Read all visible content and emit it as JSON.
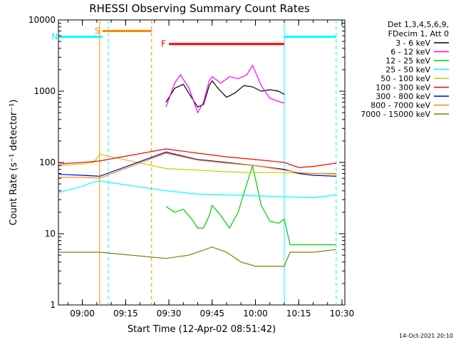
{
  "chart_data": {
    "type": "line",
    "title": "RHESSI Observing Summary Count Rates",
    "xlabel": "Start Time (12-Apr-02 08:51:42)",
    "ylabel": "Count Rate (s⁻¹ detector⁻¹)",
    "y_scale": "log",
    "ylim": [
      1,
      10000
    ],
    "xlim": [
      "08:51:42",
      "10:31:00"
    ],
    "x_ticks": [
      "09:00",
      "09:15",
      "09:30",
      "09:45",
      "10:00",
      "10:15",
      "10:30"
    ],
    "y_ticks": [
      "1",
      "10",
      "100",
      "1000",
      "10000"
    ],
    "legend_header": [
      "Det 1,3,4,5,6,9,",
      "FDecim 1, Att 0"
    ],
    "legend_position": "outside-right",
    "series": [
      {
        "name": "3 - 6 keV",
        "color": "#000000",
        "x": [
          "09:29",
          "09:32",
          "09:35",
          "09:38",
          "09:40",
          "09:42",
          "09:44",
          "09:45",
          "09:47",
          "09:50",
          "09:53",
          "09:56",
          "09:59",
          "10:02",
          "10:05",
          "10:08",
          "10:10"
        ],
        "values": [
          700,
          1100,
          1250,
          800,
          600,
          650,
          1200,
          1400,
          1100,
          820,
          950,
          1200,
          1150,
          1000,
          1050,
          1000,
          900
        ]
      },
      {
        "name": "6 - 12 keV",
        "color": "#ff00ff",
        "x": [
          "09:29",
          "09:32",
          "09:34",
          "09:37",
          "09:40",
          "09:42",
          "09:44",
          "09:45",
          "09:48",
          "09:51",
          "09:54",
          "09:57",
          "09:59",
          "10:02",
          "10:05",
          "10:08",
          "10:10"
        ],
        "values": [
          600,
          1300,
          1700,
          1100,
          500,
          700,
          1400,
          1600,
          1300,
          1600,
          1500,
          1700,
          2300,
          1200,
          800,
          720,
          680
        ]
      },
      {
        "name": "12 - 25 keV",
        "color": "#00cc00",
        "x": [
          "09:29",
          "09:32",
          "09:35",
          "09:38",
          "09:40",
          "09:42",
          "09:44",
          "09:45",
          "09:48",
          "09:51",
          "09:54",
          "09:57",
          "09:59",
          "10:02",
          "10:05",
          "10:08",
          "10:10",
          "10:12",
          "10:20",
          "10:28"
        ],
        "values": [
          24,
          20,
          22,
          16,
          12,
          12,
          18,
          25,
          18,
          12,
          20,
          50,
          90,
          25,
          15,
          14,
          16,
          7,
          7,
          7
        ]
      },
      {
        "name": "25 - 50 keV",
        "color": "#00ffff",
        "x": [
          "08:52",
          "08:56",
          "09:00",
          "09:03",
          "09:06",
          "09:29",
          "09:40",
          "09:50",
          "10:00",
          "10:10",
          "10:20",
          "10:28"
        ],
        "values": [
          38,
          42,
          46,
          52,
          55,
          40,
          36,
          35,
          34,
          33,
          32,
          35
        ]
      },
      {
        "name": "50 - 100 keV",
        "color": "#cccc00",
        "x": [
          "08:52",
          "09:00",
          "09:04",
          "09:06",
          "09:29",
          "09:40",
          "09:50",
          "10:00",
          "10:10",
          "10:20",
          "10:28"
        ],
        "values": [
          90,
          95,
          100,
          130,
          82,
          78,
          74,
          72,
          72,
          70,
          68
        ]
      },
      {
        "name": "100 - 300 keV",
        "color": "#ff0000",
        "x": [
          "08:52",
          "09:00",
          "09:06",
          "09:29",
          "09:40",
          "09:50",
          "10:00",
          "10:10",
          "10:15",
          "10:20",
          "10:28"
        ],
        "values": [
          95,
          100,
          105,
          155,
          135,
          120,
          110,
          100,
          85,
          88,
          98
        ]
      },
      {
        "name": "300 - 800 keV",
        "color": "#0000cc",
        "x": [
          "08:52",
          "09:00",
          "09:06",
          "09:29",
          "09:40",
          "09:50",
          "10:00",
          "10:10",
          "10:15",
          "10:20",
          "10:28"
        ],
        "values": [
          68,
          66,
          64,
          140,
          110,
          100,
          90,
          80,
          70,
          66,
          64
        ]
      },
      {
        "name": "800 - 7000 keV",
        "color": "#ff8800",
        "x": [
          "08:52",
          "09:00",
          "09:06",
          "09:29",
          "09:40",
          "09:50",
          "10:00",
          "10:10",
          "10:15",
          "10:20",
          "10:28"
        ],
        "values": [
          62,
          62,
          60,
          135,
          108,
          98,
          90,
          78,
          72,
          70,
          70
        ]
      },
      {
        "name": "7000 - 15000 keV",
        "color": "#808000",
        "x": [
          "08:52",
          "09:00",
          "09:06",
          "09:29",
          "09:37",
          "09:45",
          "09:50",
          "09:55",
          "10:00",
          "10:10",
          "10:12",
          "10:20",
          "10:28"
        ],
        "values": [
          5.5,
          5.5,
          5.5,
          4.5,
          5,
          6.5,
          5.5,
          4,
          3.5,
          3.5,
          5.5,
          5.5,
          6
        ]
      }
    ],
    "flags": [
      {
        "label": "S",
        "color": "#ff8800",
        "start": "09:07",
        "end": "09:24",
        "level": 7000
      },
      {
        "label": "N",
        "color": "#00ffff",
        "start": "08:52",
        "end": "09:07",
        "level": 5800
      },
      {
        "label": "F",
        "color": "#ff0000",
        "start": "09:30",
        "end": "10:10",
        "level": 4600
      }
    ],
    "vertical_markers": [
      {
        "time": "09:06",
        "color": "#ff8800",
        "style": "solid"
      },
      {
        "time": "09:09",
        "color": "#00ffff",
        "style": "dashed"
      },
      {
        "time": "09:24",
        "color": "#ff8800",
        "style": "dashed"
      },
      {
        "time": "10:10",
        "color": "#00ffff",
        "style": "solid"
      },
      {
        "time": "10:28",
        "color": "#00ffff",
        "style": "dashed"
      }
    ],
    "grid": false
  },
  "footer_timestamp": "14-Oct-2021 20:10"
}
